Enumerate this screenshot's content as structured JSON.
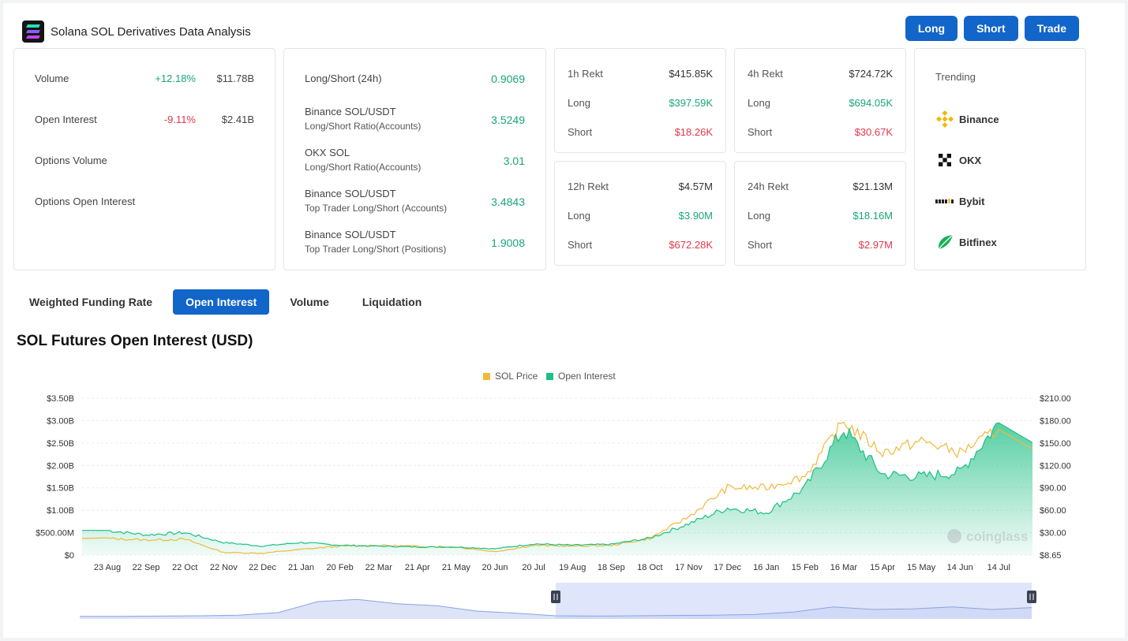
{
  "header": {
    "title": "Solana SOL Derivatives Data Analysis",
    "buttons": {
      "long": "Long",
      "short": "Short",
      "trade": "Trade"
    }
  },
  "overview": {
    "volume": {
      "label": "Volume",
      "change": "+12.18%",
      "value": "$11.78B"
    },
    "open_interest": {
      "label": "Open Interest",
      "change": "-9.11%",
      "value": "$2.41B"
    },
    "options_volume": {
      "label": "Options Volume"
    },
    "options_open_interest": {
      "label": "Options Open Interest"
    }
  },
  "long_short": {
    "rows": [
      {
        "label": "Long/Short (24h)",
        "sub": "",
        "value": "0.9069"
      },
      {
        "label": "Binance SOL/USDT",
        "sub": "Long/Short Ratio(Accounts)",
        "value": "3.5249"
      },
      {
        "label": "OKX SOL",
        "sub": "Long/Short Ratio(Accounts)",
        "value": "3.01"
      },
      {
        "label": "Binance SOL/USDT",
        "sub": "Top Trader Long/Short (Accounts)",
        "value": "3.4843"
      },
      {
        "label": "Binance SOL/USDT",
        "sub": "Top Trader Long/Short (Positions)",
        "value": "1.9008"
      }
    ]
  },
  "rekt": {
    "long_label": "Long",
    "short_label": "Short",
    "h1": {
      "label": "1h Rekt",
      "total": "$415.85K",
      "long": "$397.59K",
      "short": "$18.26K"
    },
    "h4": {
      "label": "4h Rekt",
      "total": "$724.72K",
      "long": "$694.05K",
      "short": "$30.67K"
    },
    "h12": {
      "label": "12h Rekt",
      "total": "$4.57M",
      "long": "$3.90M",
      "short": "$672.28K"
    },
    "h24": {
      "label": "24h Rekt",
      "total": "$21.13M",
      "long": "$18.16M",
      "short": "$2.97M"
    }
  },
  "trending": {
    "title": "Trending",
    "exchanges": [
      {
        "name": "Binance",
        "icon": "binance-icon"
      },
      {
        "name": "OKX",
        "icon": "okx-icon"
      },
      {
        "name": "Bybit",
        "icon": "bybit-icon"
      },
      {
        "name": "Bitfinex",
        "icon": "bitfinex-icon"
      }
    ]
  },
  "tabs": [
    {
      "label": "Weighted Funding Rate",
      "active": false
    },
    {
      "label": "Open Interest",
      "active": true
    },
    {
      "label": "Volume",
      "active": false
    },
    {
      "label": "Liquidation",
      "active": false
    }
  ],
  "chart_title": "SOL Futures Open Interest (USD)",
  "watermark": "coinglass",
  "chart_data": {
    "type": "area",
    "title": "SOL Futures Open Interest (USD)",
    "legend": {
      "placement": "top-center",
      "items": [
        "SOL Price",
        "Open Interest"
      ]
    },
    "colors": {
      "price": "#f0b93a",
      "open_interest": "#1dbf84"
    },
    "x_ticks": [
      "23 Aug",
      "22 Sep",
      "22 Oct",
      "22 Nov",
      "22 Dec",
      "21 Jan",
      "20 Feb",
      "22 Mar",
      "21 Apr",
      "21 May",
      "20 Jun",
      "20 Jul",
      "19 Aug",
      "18 Sep",
      "18 Oct",
      "17 Nov",
      "17 Dec",
      "16 Jan",
      "15 Feb",
      "16 Mar",
      "15 Apr",
      "15 May",
      "14 Jun",
      "14 Jul"
    ],
    "y_left": {
      "ticks": [
        "$0",
        "$500.00M",
        "$1.00B",
        "$1.50B",
        "$2.00B",
        "$2.50B",
        "$3.00B",
        "$3.50B"
      ],
      "range": [
        0,
        3.5
      ],
      "unit": "B USD"
    },
    "y_right": {
      "ticks": [
        "$8.65",
        "$30.00",
        "$60.00",
        "$90.00",
        "$120.00",
        "$150.00",
        "$180.00",
        "$210.00"
      ],
      "range": [
        8.65,
        210
      ]
    },
    "series": [
      {
        "name": "Open Interest",
        "axis": "left",
        "x": [
          "23 Aug",
          "22 Sep",
          "22 Oct",
          "22 Nov",
          "22 Dec",
          "21 Jan",
          "20 Feb",
          "22 Mar",
          "21 Apr",
          "21 May",
          "20 Jun",
          "20 Jul",
          "19 Aug",
          "18 Sep",
          "18 Oct",
          "17 Nov",
          "17 Dec",
          "16 Jan",
          "15 Feb",
          "16 Mar",
          "15 Apr",
          "15 May",
          "14 Jun",
          "14 Jul"
        ],
        "values": [
          0.55,
          0.45,
          0.5,
          0.28,
          0.2,
          0.28,
          0.22,
          0.2,
          0.18,
          0.18,
          0.14,
          0.25,
          0.22,
          0.24,
          0.38,
          0.7,
          1.05,
          0.95,
          1.5,
          2.8,
          1.8,
          1.75,
          1.85,
          2.95
        ]
      },
      {
        "name": "SOL Price",
        "axis": "right",
        "x": [
          "23 Aug",
          "22 Sep",
          "22 Oct",
          "22 Nov",
          "22 Dec",
          "21 Jan",
          "20 Feb",
          "22 Mar",
          "21 Apr",
          "21 May",
          "20 Jun",
          "20 Jul",
          "19 Aug",
          "18 Sep",
          "18 Oct",
          "17 Nov",
          "17 Dec",
          "16 Jan",
          "15 Feb",
          "16 Mar",
          "15 Apr",
          "15 May",
          "14 Jun",
          "14 Jul"
        ],
        "values": [
          30,
          28,
          29,
          12,
          11,
          16,
          20,
          21,
          20,
          19,
          13,
          21,
          20,
          21,
          30,
          58,
          95,
          95,
          110,
          180,
          140,
          155,
          140,
          170
        ]
      }
    ],
    "navigator": {
      "points": [
        0.08,
        0.08,
        0.09,
        0.1,
        0.12,
        0.2,
        0.55,
        0.62,
        0.48,
        0.42,
        0.25,
        0.18,
        0.1,
        0.09,
        0.1,
        0.11,
        0.12,
        0.14,
        0.22,
        0.38,
        0.3,
        0.32,
        0.38,
        0.3,
        0.36
      ]
    }
  }
}
